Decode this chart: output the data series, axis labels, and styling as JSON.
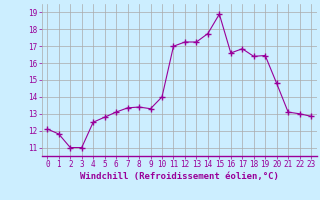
{
  "x": [
    0,
    1,
    2,
    3,
    4,
    5,
    6,
    7,
    8,
    9,
    10,
    11,
    12,
    13,
    14,
    15,
    16,
    17,
    18,
    19,
    20,
    21,
    22,
    23
  ],
  "y": [
    12.1,
    11.8,
    11.0,
    11.0,
    12.5,
    12.8,
    13.1,
    13.35,
    13.4,
    13.3,
    14.0,
    17.0,
    17.25,
    17.25,
    17.75,
    18.9,
    16.6,
    16.85,
    16.4,
    16.45,
    14.8,
    13.1,
    13.0,
    12.85
  ],
  "line_color": "#990099",
  "marker": "+",
  "marker_size": 4,
  "bg_color": "#cceeff",
  "grid_color": "#aaaaaa",
  "xlabel": "Windchill (Refroidissement éolien,°C)",
  "xlabel_color": "#990099",
  "ylabel_values": [
    11,
    12,
    13,
    14,
    15,
    16,
    17,
    18,
    19
  ],
  "ylim": [
    10.5,
    19.5
  ],
  "xlim": [
    -0.5,
    23.5
  ],
  "xtick_labels": [
    "0",
    "1",
    "2",
    "3",
    "4",
    "5",
    "6",
    "7",
    "8",
    "9",
    "10",
    "11",
    "12",
    "13",
    "14",
    "15",
    "16",
    "17",
    "18",
    "19",
    "20",
    "21",
    "22",
    "23"
  ],
  "tick_color": "#990099",
  "label_fontsize": 5.5,
  "axis_label_fontsize": 6.5
}
